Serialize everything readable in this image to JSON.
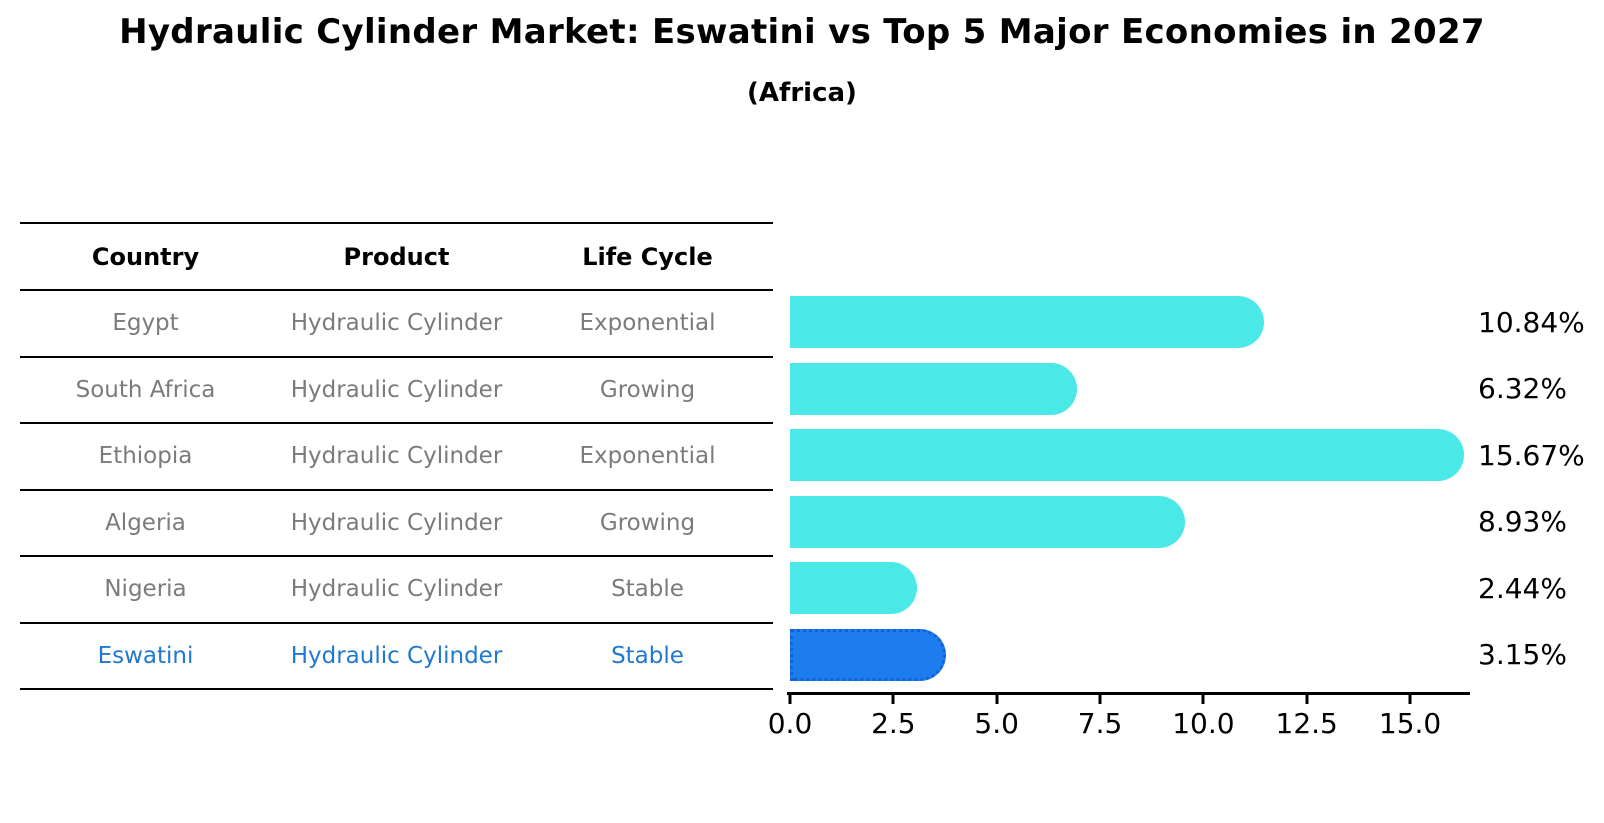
{
  "title": "Hydraulic Cylinder Market: Eswatini vs Top 5 Major Economies in 2027",
  "subtitle": "(Africa)",
  "table": {
    "headers": [
      "Country",
      "Product",
      "Life Cycle"
    ],
    "rows": [
      {
        "country": "Egypt",
        "product": "Hydraulic Cylinder",
        "life_cycle": "Exponential"
      },
      {
        "country": "South Africa",
        "product": "Hydraulic Cylinder",
        "life_cycle": "Growing"
      },
      {
        "country": "Ethiopia",
        "product": "Hydraulic Cylinder",
        "life_cycle": "Exponential"
      },
      {
        "country": "Algeria",
        "product": "Hydraulic Cylinder",
        "life_cycle": "Growing"
      },
      {
        "country": "Nigeria",
        "product": "Hydraulic Cylinder",
        "life_cycle": "Stable"
      },
      {
        "country": "Eswatini",
        "product": "Hydraulic Cylinder",
        "life_cycle": "Stable"
      }
    ]
  },
  "chart_data": {
    "type": "bar",
    "orientation": "horizontal",
    "title": "Hydraulic Cylinder Market: Eswatini vs Top 5 Major Economies in 2027",
    "subtitle": "(Africa)",
    "categories": [
      "Egypt",
      "South Africa",
      "Ethiopia",
      "Algeria",
      "Nigeria",
      "Eswatini"
    ],
    "values": [
      10.84,
      6.32,
      15.67,
      8.93,
      2.44,
      3.15
    ],
    "value_labels": [
      "10.84%",
      "6.32%",
      "15.67%",
      "8.93%",
      "2.44%",
      "3.15%"
    ],
    "xlabel": "",
    "ylabel": "",
    "xlim": [
      0,
      16.45
    ],
    "x_ticks": [
      "0.0",
      "2.5",
      "5.0",
      "7.5",
      "10.0",
      "12.5",
      "15.0"
    ],
    "x_tick_values": [
      0,
      2.5,
      5,
      7.5,
      10,
      12.5,
      15
    ],
    "grid": false,
    "legend": false,
    "bar_color": "#4BE8E8",
    "highlight_color": "#1E7DEE",
    "highlight_index": 5,
    "highlight_category": "Eswatini",
    "highlight_text_color": "#2079d0",
    "row_text_color": "#7b7b7b"
  }
}
